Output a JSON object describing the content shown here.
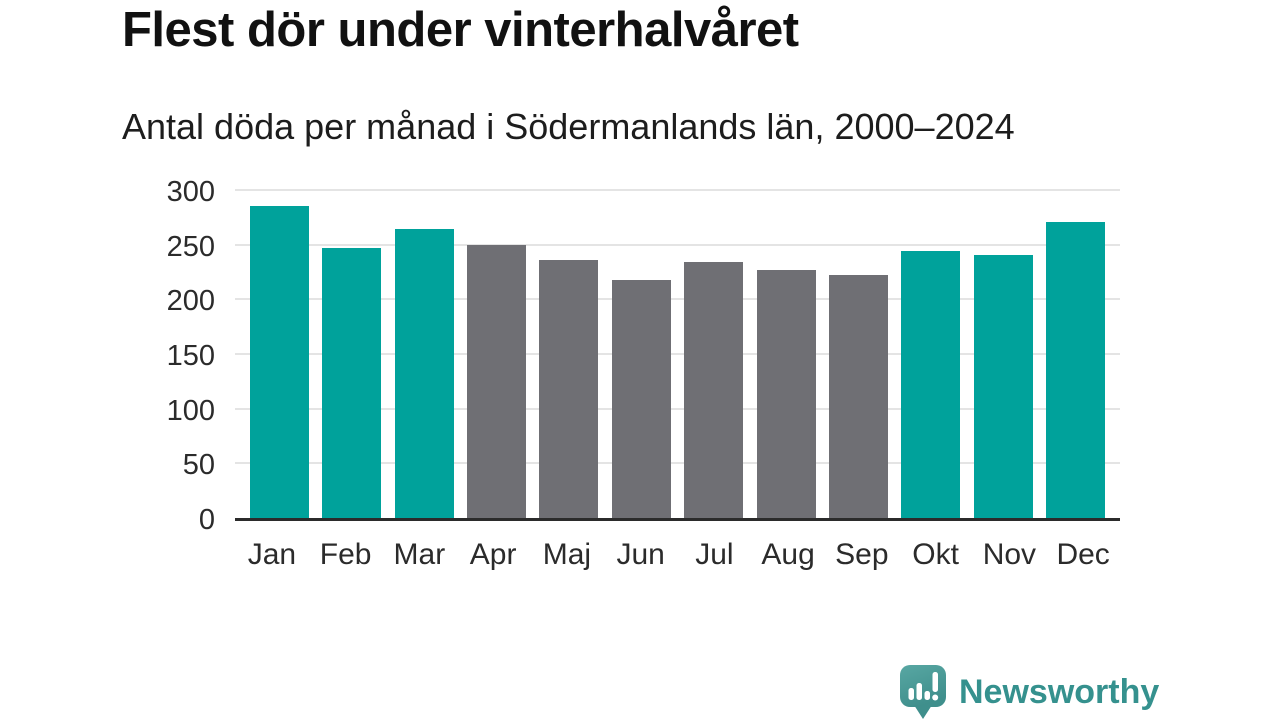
{
  "header": {
    "title": "Flest dör under vinterhalvåret",
    "subtitle": "Antal döda per månad i Södermanlands län, 2000–2024"
  },
  "chart_data": {
    "type": "bar",
    "title": "Flest dör under vinterhalvåret",
    "subtitle": "Antal döda per månad i Södermanlands län, 2000–2024",
    "categories": [
      "Jan",
      "Feb",
      "Mar",
      "Apr",
      "Maj",
      "Jun",
      "Jul",
      "Aug",
      "Sep",
      "Okt",
      "Nov",
      "Dec"
    ],
    "values": [
      285,
      247,
      264,
      250,
      236,
      218,
      234,
      227,
      222,
      244,
      241,
      271
    ],
    "highlighted": [
      true,
      true,
      true,
      false,
      false,
      false,
      false,
      false,
      false,
      true,
      true,
      true
    ],
    "xlabel": "",
    "ylabel": "",
    "ylim": [
      0,
      300
    ],
    "yticks": [
      0,
      50,
      100,
      150,
      200,
      250,
      300
    ],
    "grid": "horizontal",
    "legend": "none",
    "highlight_color": "#00a29b",
    "base_color": "#6f6f74",
    "axis_color": "#2b2b2b",
    "gridline_color": "#e4e4e4"
  },
  "footer": {
    "brand": "Newsworthy",
    "brand_color": "#35918e",
    "logo_icon": "speech-bubble-bar-chart-exclamation"
  }
}
